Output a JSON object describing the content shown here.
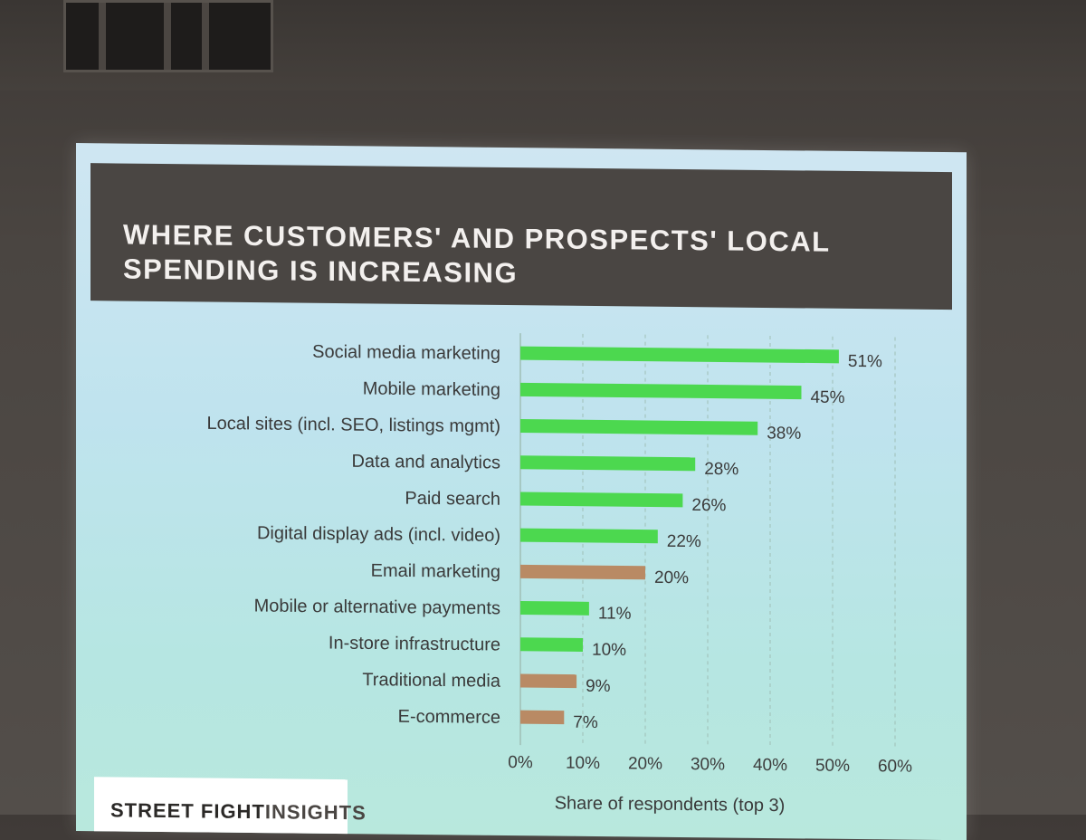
{
  "slide": {
    "title": "WHERE CUSTOMERS' AND PROSPECTS' LOCAL\nSPENDING IS INCREASING",
    "brand_part1": "STREET FIGHT",
    "brand_part2": "INSIGHTS"
  },
  "colors": {
    "green": "#4cd84f",
    "brown": "#b98a64",
    "title_bg": "#4a4643",
    "grid": "#9fbfb6"
  },
  "chart_data": {
    "type": "bar",
    "orientation": "horizontal",
    "categories": [
      "Social media marketing",
      "Mobile marketing",
      "Local sites (incl. SEO, listings mgmt)",
      "Data and analytics",
      "Paid search",
      "Digital display ads (incl. video)",
      "Email marketing",
      "Mobile or alternative payments",
      "In-store infrastructure",
      "Traditional media",
      "E-commerce"
    ],
    "values": [
      51,
      45,
      38,
      28,
      26,
      22,
      20,
      11,
      10,
      9,
      7
    ],
    "value_labels": [
      "51%",
      "45%",
      "38%",
      "28%",
      "26%",
      "22%",
      "20%",
      "11%",
      "10%",
      "9%",
      "7%"
    ],
    "bar_colors": [
      "green",
      "green",
      "green",
      "green",
      "green",
      "green",
      "brown",
      "green",
      "green",
      "brown",
      "brown"
    ],
    "xlabel": "Share of respondents (top 3)",
    "ylabel": "",
    "xlim": [
      0,
      60
    ],
    "xticks": [
      "0%",
      "10%",
      "20%",
      "30%",
      "40%",
      "50%",
      "60%"
    ],
    "grid": "vertical dashed"
  }
}
